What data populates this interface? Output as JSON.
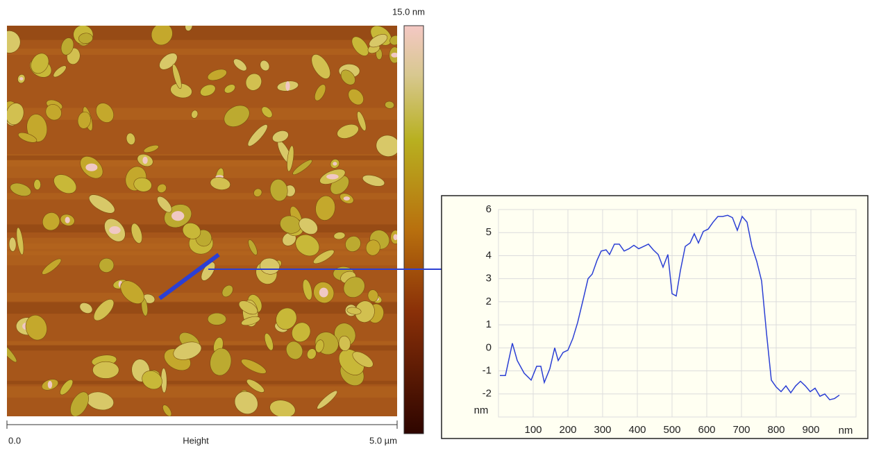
{
  "image": {
    "colorbar_label": "15.0 nm",
    "scale_start": "0.0",
    "scale_title": "Height",
    "scale_end": "5.0 µm"
  },
  "chart_data": {
    "type": "line",
    "x": [
      4,
      20,
      40,
      54,
      74,
      94,
      110,
      122,
      132,
      148,
      162,
      172,
      186,
      200,
      214,
      228,
      244,
      258,
      270,
      284,
      296,
      310,
      320,
      334,
      348,
      362,
      376,
      390,
      404,
      418,
      432,
      446,
      460,
      474,
      488,
      500,
      512,
      524,
      538,
      552,
      564,
      576,
      590,
      604,
      618,
      632,
      646,
      660,
      674,
      688,
      702,
      716,
      730,
      744,
      758,
      772,
      786,
      800,
      814,
      828,
      842,
      856,
      870,
      884,
      898,
      912,
      926,
      940,
      954,
      968,
      982
    ],
    "series": [
      {
        "color": "#2b3fd4",
        "values": [
          -1.2,
          -1.2,
          0.2,
          -0.55,
          -1.1,
          -1.4,
          -0.8,
          -0.8,
          -1.5,
          -0.9,
          0,
          -0.55,
          -0.2,
          -0.1,
          0.4,
          1.1,
          2.1,
          3.0,
          3.2,
          3.8,
          4.2,
          4.25,
          4.05,
          4.5,
          4.5,
          4.2,
          4.3,
          4.45,
          4.3,
          4.4,
          4.5,
          4.25,
          4.05,
          3.5,
          4.05,
          2.35,
          2.25,
          3.35,
          4.4,
          4.55,
          4.95,
          4.55,
          5.05,
          5.15,
          5.45,
          5.7,
          5.7,
          5.75,
          5.65,
          5.1,
          5.7,
          5.45,
          4.4,
          3.75,
          2.9,
          0.65,
          -1.4,
          -1.7,
          -1.9,
          -1.65,
          -1.95,
          -1.65,
          -1.45,
          -1.65,
          -1.9,
          -1.75,
          -2.1,
          -2.0,
          -2.25,
          -2.2,
          -2.05
        ]
      }
    ],
    "xlim": [
      0,
      1030
    ],
    "ylim": [
      -3,
      6
    ],
    "xticks": [
      100,
      200,
      300,
      400,
      500,
      600,
      700,
      800,
      900
    ],
    "yticks": [
      -2,
      -1,
      0,
      1,
      2,
      3,
      4,
      5,
      6
    ],
    "xlabel": "nm",
    "ylabel": "nm",
    "grid": true
  }
}
